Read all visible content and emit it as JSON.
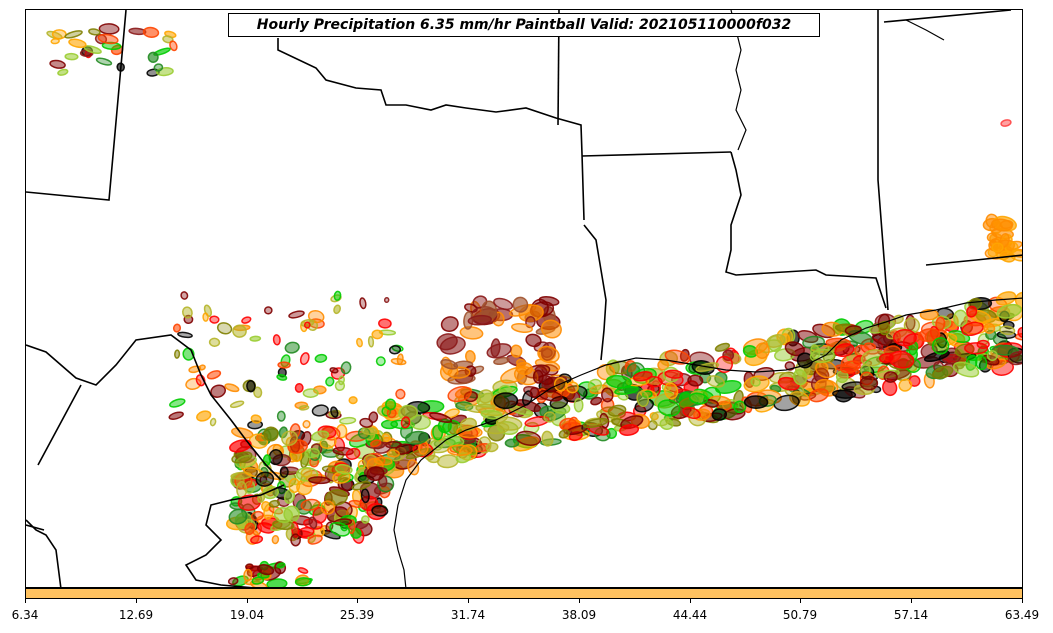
{
  "title": "Hourly Precipitation 6.35 mm/hr Paintball Valid: 202105110000f032",
  "colorbar": {
    "color": "#ffc260",
    "ticks": [
      "6.34",
      "12.69",
      "19.04",
      "25.39",
      "31.74",
      "38.09",
      "44.44",
      "50.79",
      "57.14",
      "63.49"
    ]
  },
  "member_colors": [
    "#ff0000",
    "#ff8c00",
    "#ffa500",
    "#00cc00",
    "#228b22",
    "#808000",
    "#9acd32",
    "#800000",
    "#8b1a1a",
    "#000000",
    "#ff4500",
    "#b5b52a"
  ]
}
